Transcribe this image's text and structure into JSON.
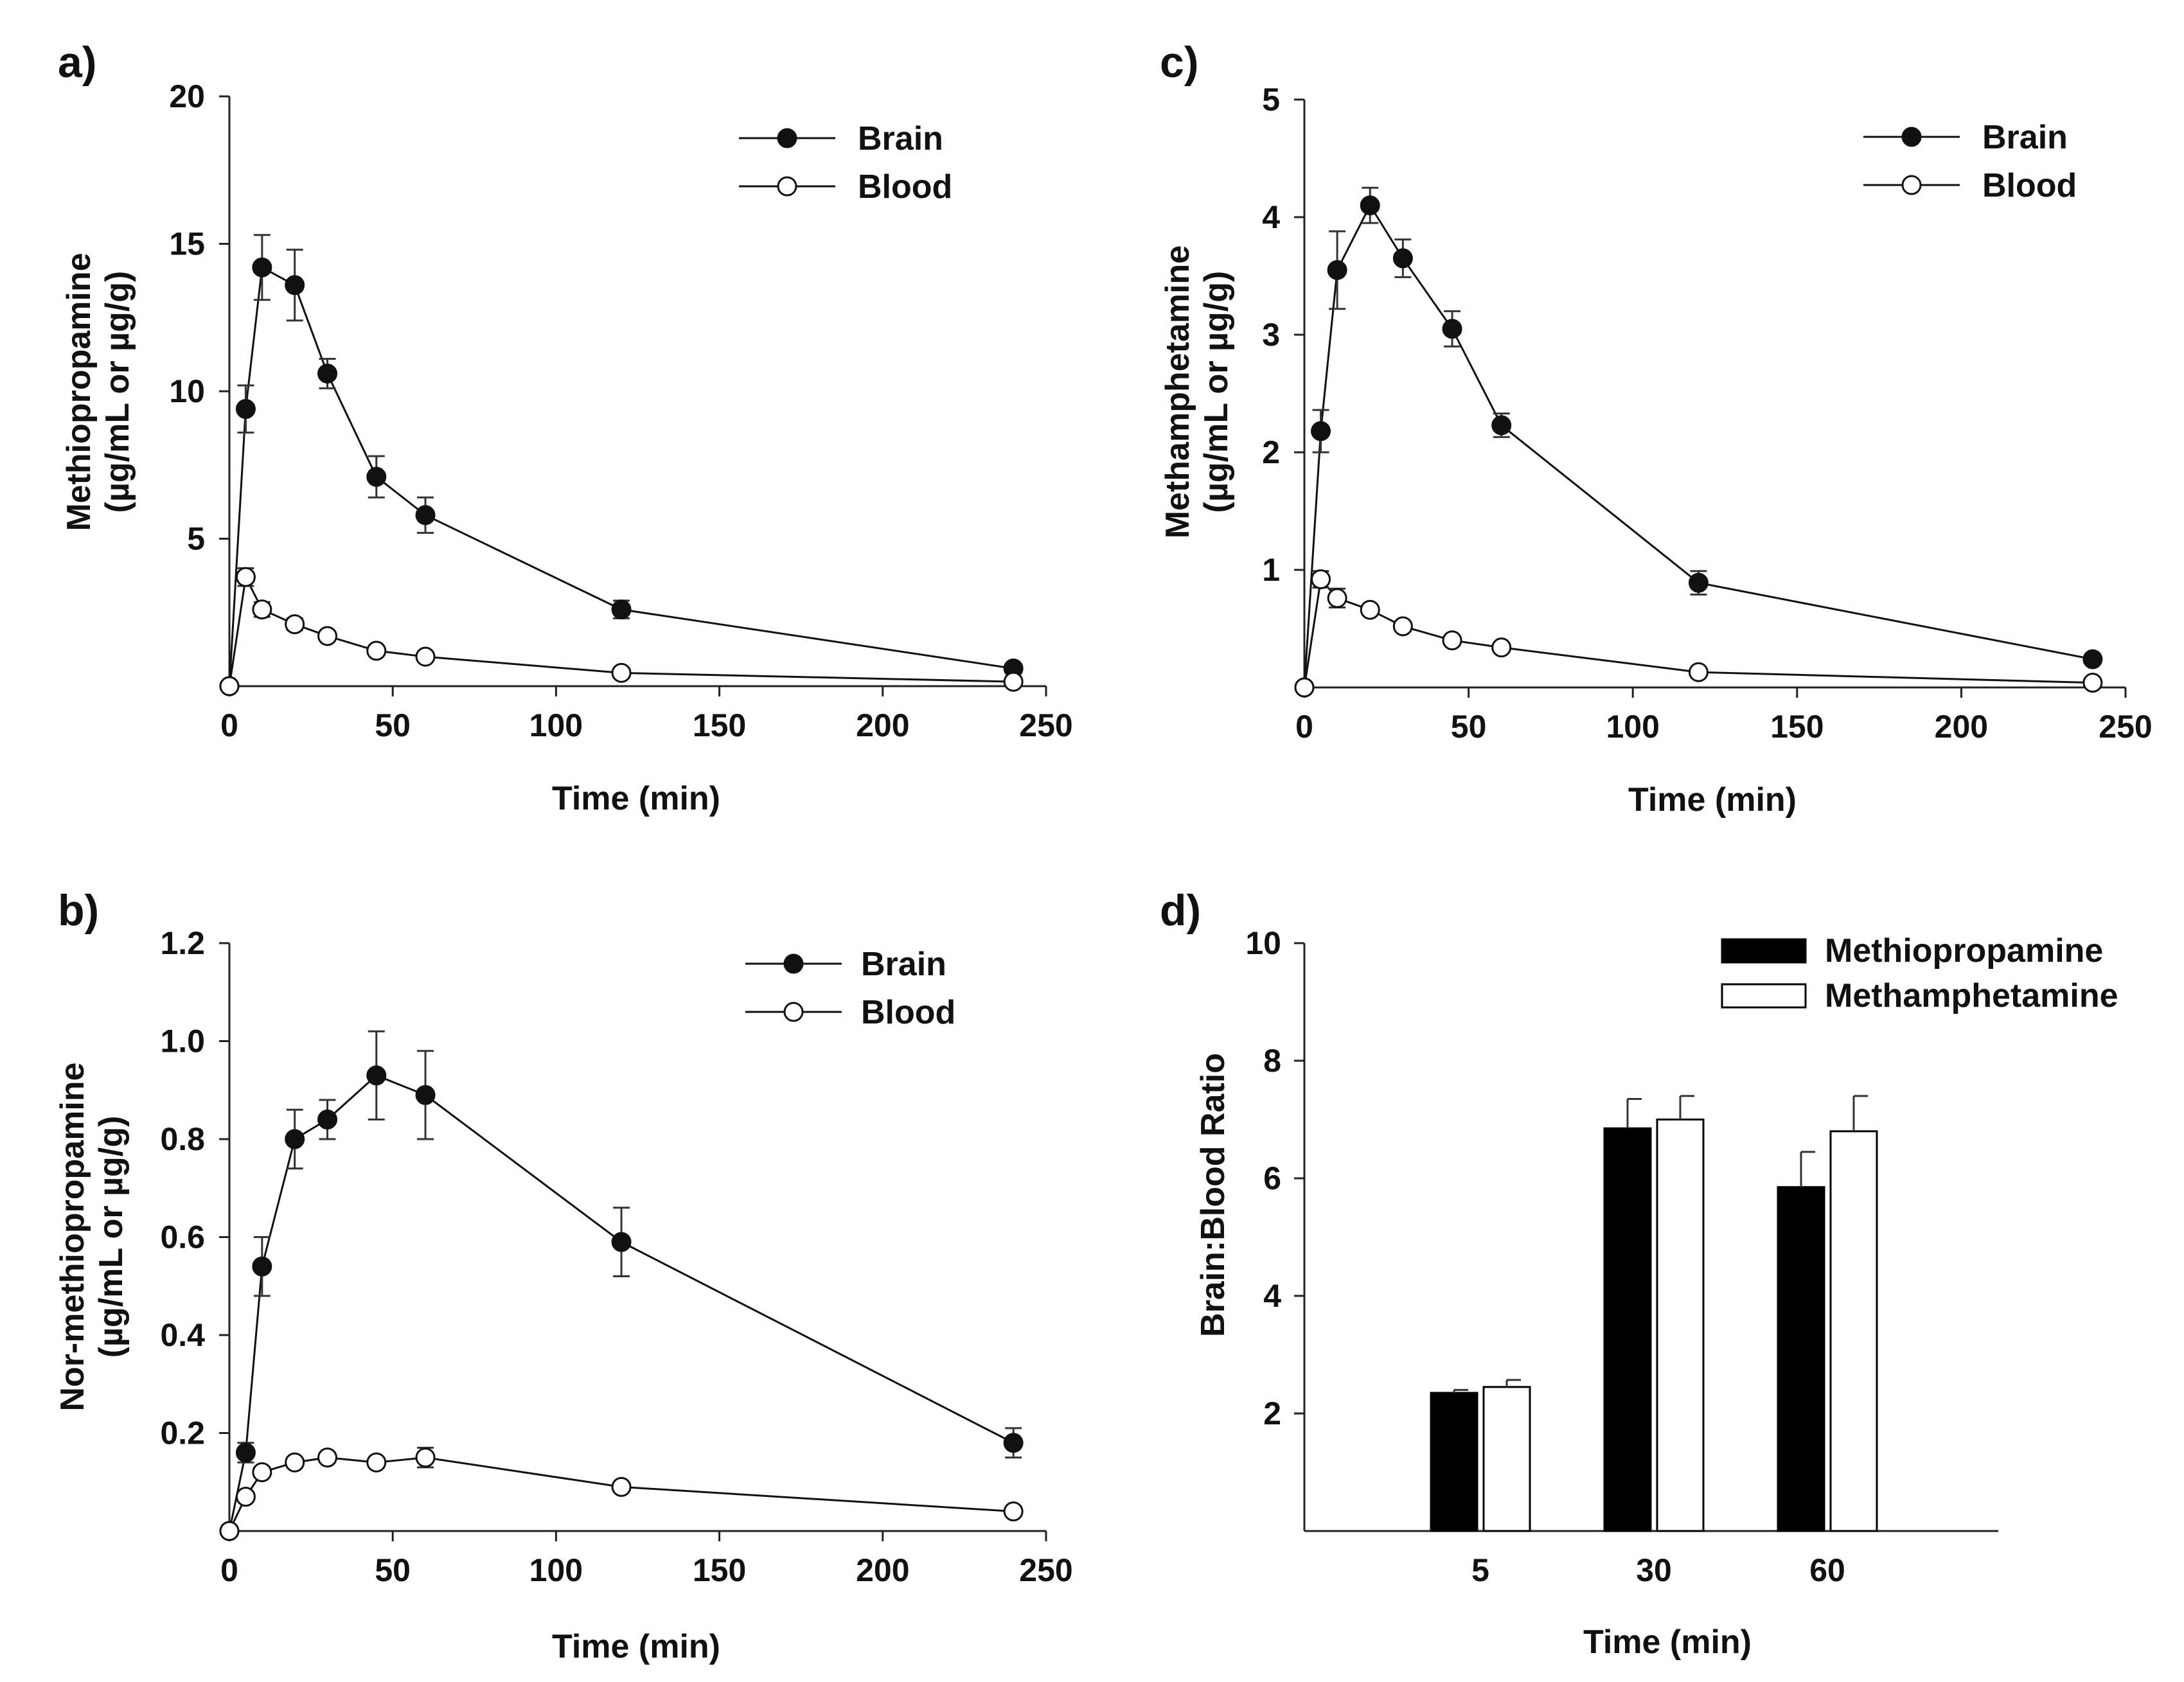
{
  "chart_data": [
    {
      "id": "a",
      "panel_label": "a)",
      "type": "line",
      "xlabel": "Time (min)",
      "ylabel_lines": [
        "Methiopropamine",
        "(µg/mL or µg/g)"
      ],
      "xlim": [
        0,
        250
      ],
      "ylim": [
        0,
        20
      ],
      "xticks": [
        0,
        50,
        100,
        150,
        200,
        250
      ],
      "xtick_labels": [
        "0",
        "50",
        "100",
        "150",
        "200",
        "250"
      ],
      "yticks": [
        5,
        10,
        15,
        20
      ],
      "ytick_labels": [
        "5",
        "10",
        "15",
        "20"
      ],
      "legend_position": "top-right",
      "series": [
        {
          "name": "Brain",
          "marker": "filled-circle",
          "color": "#111111",
          "x": [
            0,
            5,
            10,
            20,
            30,
            45,
            60,
            120,
            240
          ],
          "y": [
            0,
            9.4,
            14.2,
            13.6,
            10.6,
            7.1,
            5.8,
            2.6,
            0.6
          ],
          "err": [
            0,
            0.8,
            1.1,
            1.2,
            0.5,
            0.7,
            0.6,
            0.3,
            0.1
          ]
        },
        {
          "name": "Blood",
          "marker": "open-circle",
          "color": "#111111",
          "x": [
            0,
            5,
            10,
            20,
            30,
            45,
            60,
            120,
            240
          ],
          "y": [
            0,
            3.7,
            2.6,
            2.1,
            1.7,
            1.2,
            1.0,
            0.45,
            0.15
          ],
          "err": [
            0,
            0.3,
            0.25,
            0.2,
            0.15,
            0.1,
            0.1,
            0.05,
            0.02
          ]
        }
      ]
    },
    {
      "id": "b",
      "panel_label": "b)",
      "type": "line",
      "xlabel": "Time (min)",
      "ylabel_lines": [
        "Nor-methiopropamine",
        "(µg/mL or µg/g)"
      ],
      "xlim": [
        0,
        250
      ],
      "ylim": [
        0,
        1.2
      ],
      "xticks": [
        0,
        50,
        100,
        150,
        200,
        250
      ],
      "xtick_labels": [
        "0",
        "50",
        "100",
        "150",
        "200",
        "250"
      ],
      "yticks": [
        0.2,
        0.4,
        0.6,
        0.8,
        1.0,
        1.2
      ],
      "ytick_labels": [
        "0.2",
        "0.4",
        "0.6",
        "0.8",
        "1.0",
        "1.2"
      ],
      "legend_position": "top-right",
      "series": [
        {
          "name": "Brain",
          "marker": "filled-circle",
          "color": "#111111",
          "x": [
            0,
            5,
            10,
            20,
            30,
            45,
            60,
            120,
            240
          ],
          "y": [
            0,
            0.16,
            0.54,
            0.8,
            0.84,
            0.93,
            0.89,
            0.59,
            0.18
          ],
          "err": [
            0,
            0.02,
            0.06,
            0.06,
            0.04,
            0.09,
            0.09,
            0.07,
            0.03
          ]
        },
        {
          "name": "Blood",
          "marker": "open-circle",
          "color": "#111111",
          "x": [
            0,
            5,
            10,
            20,
            30,
            45,
            60,
            120,
            240
          ],
          "y": [
            0,
            0.07,
            0.12,
            0.14,
            0.15,
            0.14,
            0.15,
            0.09,
            0.04
          ],
          "err": [
            0,
            0.01,
            0.01,
            0.01,
            0.01,
            0.01,
            0.02,
            0.01,
            0.005
          ]
        }
      ]
    },
    {
      "id": "c",
      "panel_label": "c)",
      "type": "line",
      "xlabel": "Time (min)",
      "ylabel_lines": [
        "Methamphetamine",
        "(µg/mL or µg/g)"
      ],
      "xlim": [
        0,
        250
      ],
      "ylim": [
        0,
        5
      ],
      "xticks": [
        0,
        50,
        100,
        150,
        200,
        250
      ],
      "xtick_labels": [
        "0",
        "50",
        "100",
        "150",
        "200",
        "250"
      ],
      "yticks": [
        1,
        2,
        3,
        4,
        5
      ],
      "ytick_labels": [
        "1",
        "2",
        "3",
        "4",
        "5"
      ],
      "legend_position": "top-right",
      "series": [
        {
          "name": "Brain",
          "marker": "filled-circle",
          "color": "#111111",
          "x": [
            0,
            5,
            10,
            20,
            30,
            45,
            60,
            120,
            240
          ],
          "y": [
            0,
            2.18,
            3.55,
            4.1,
            3.65,
            3.05,
            2.23,
            0.89,
            0.24
          ],
          "err": [
            0,
            0.18,
            0.33,
            0.15,
            0.16,
            0.15,
            0.1,
            0.1,
            0.02
          ]
        },
        {
          "name": "Blood",
          "marker": "open-circle",
          "color": "#111111",
          "x": [
            0,
            5,
            10,
            20,
            30,
            45,
            60,
            120,
            240
          ],
          "y": [
            0,
            0.92,
            0.76,
            0.66,
            0.52,
            0.4,
            0.34,
            0.13,
            0.04
          ],
          "err": [
            0,
            0.07,
            0.08,
            0.04,
            0.04,
            0.03,
            0.03,
            0.02,
            0.01
          ]
        }
      ]
    },
    {
      "id": "d",
      "panel_label": "d)",
      "type": "bar",
      "xlabel": "Time (min)",
      "ylabel": "Brain:Blood Ratio",
      "categories": [
        "5",
        "30",
        "60"
      ],
      "ylim": [
        0,
        10
      ],
      "yticks": [
        2,
        4,
        6,
        8,
        10
      ],
      "ytick_labels": [
        "2",
        "4",
        "6",
        "8",
        "10"
      ],
      "legend_position": "top-right",
      "series": [
        {
          "name": "Methiopropamine",
          "fill": "#000000",
          "values": [
            2.35,
            6.85,
            5.85
          ],
          "err": [
            0.05,
            0.5,
            0.6
          ]
        },
        {
          "name": "Methamphetamine",
          "fill": "#ffffff",
          "values": [
            2.45,
            7.0,
            6.8
          ],
          "err": [
            0.12,
            0.4,
            0.6
          ]
        }
      ]
    }
  ]
}
